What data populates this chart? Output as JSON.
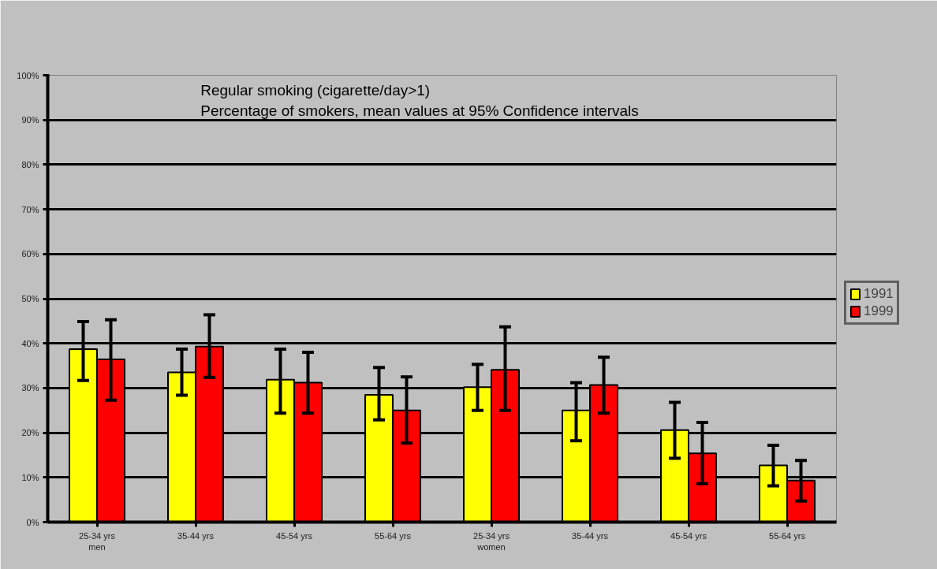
{
  "chart_data": {
    "type": "bar",
    "title": "Regular smoking (cigarette/day>1)",
    "subtitle": "Percentage of smokers, mean values at 95% Confidence intervals",
    "categories": [
      "25-34 yrs\nmen",
      "35-44 yrs",
      "45-54 yrs",
      "55-64 yrs",
      "25-34 yrs\nwomen",
      "35-44 yrs",
      "45-54 yrs",
      "55-64 yrs"
    ],
    "series": [
      {
        "name": "1991",
        "color": "#ffff00",
        "values": [
          38.7,
          33.5,
          31.9,
          28.5,
          30.2,
          25.0,
          20.6,
          12.7
        ],
        "errors": [
          [
            31.7,
            44.9
          ],
          [
            28.4,
            38.7
          ],
          [
            24.4,
            38.7
          ],
          [
            22.9,
            34.6
          ],
          [
            25.0,
            35.3
          ],
          [
            18.2,
            31.2
          ],
          [
            14.3,
            26.8
          ],
          [
            8.1,
            17.2
          ]
        ]
      },
      {
        "name": "1999",
        "color": "#ff0000",
        "values": [
          36.4,
          39.3,
          31.2,
          25.0,
          34.1,
          30.7,
          15.4,
          9.3
        ],
        "errors": [
          [
            27.3,
            45.3
          ],
          [
            32.4,
            46.4
          ],
          [
            24.4,
            38.0
          ],
          [
            17.7,
            32.5
          ],
          [
            25.0,
            43.7
          ],
          [
            24.4,
            36.9
          ],
          [
            8.6,
            22.3
          ],
          [
            4.7,
            13.8
          ]
        ]
      }
    ],
    "ylim": [
      0,
      100
    ],
    "yticks": [
      {
        "value": 0,
        "label": "0%"
      },
      {
        "value": 10,
        "label": "10%"
      },
      {
        "value": 20,
        "label": "20%"
      },
      {
        "value": 30,
        "label": "30%"
      },
      {
        "value": 40,
        "label": "40%"
      },
      {
        "value": 50,
        "label": "50%"
      },
      {
        "value": 60,
        "label": "60%"
      },
      {
        "value": 70,
        "label": "70%"
      },
      {
        "value": 80,
        "label": "80%"
      },
      {
        "value": 90,
        "label": "90%"
      },
      {
        "value": 100,
        "label": "100%"
      }
    ],
    "grid": "y",
    "legend": "right"
  }
}
